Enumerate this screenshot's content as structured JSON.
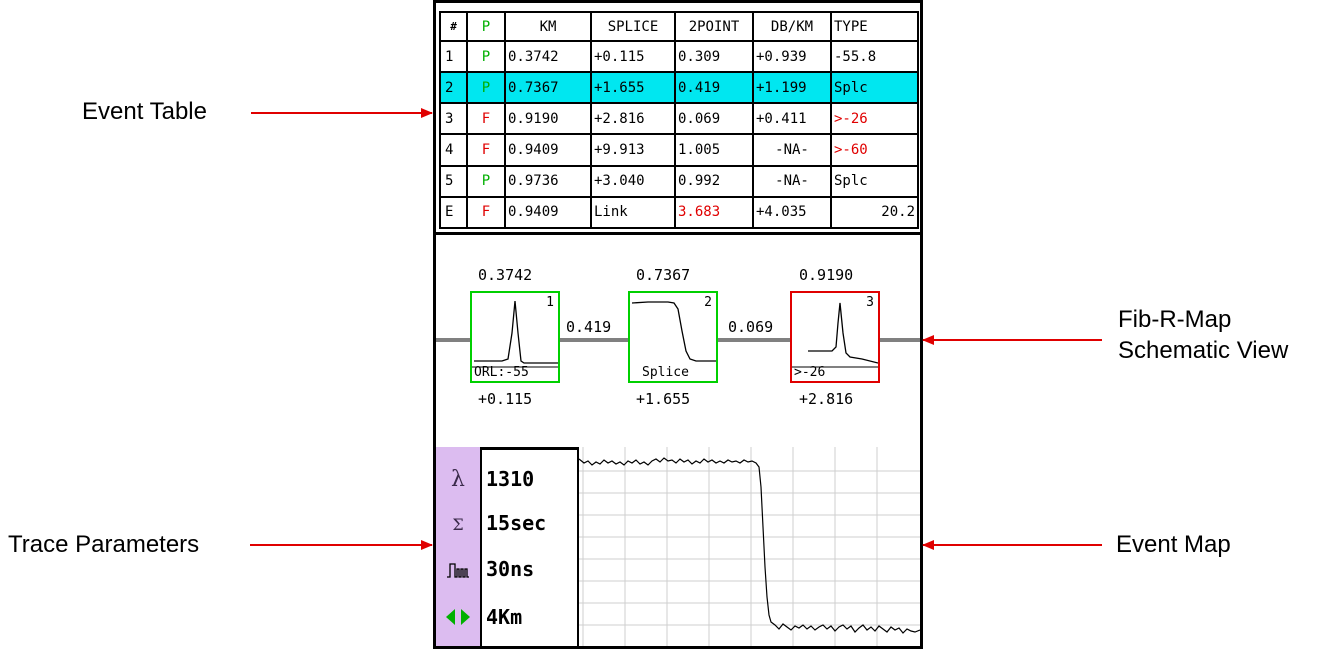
{
  "callouts": {
    "event_table": "Event Table",
    "fib_r_map_line1": "Fib-R-Map",
    "fib_r_map_line2": "Schematic View",
    "trace_parameters": "Trace Parameters",
    "event_map": "Event Map"
  },
  "colors": {
    "pass": "#00b000",
    "fail": "#e00000",
    "highlight_row": "#00e7f0",
    "param_panel": "#dcbcf0",
    "callout_arrow": "#e00000"
  },
  "event_table": {
    "headers": [
      "#",
      "P",
      "KM",
      "SPLICE",
      "2POINT",
      "DB/KM",
      "TYPE"
    ],
    "rows": [
      {
        "idx": "1",
        "pf": "P",
        "km": "0.3742",
        "splice": "+0.115",
        "two_point": "0.309",
        "db_km": "+0.939",
        "type": "-55.8"
      },
      {
        "idx": "2",
        "pf": "P",
        "km": "0.7367",
        "splice": "+1.655",
        "two_point": "0.419",
        "db_km": "+1.199",
        "type": "Splc"
      },
      {
        "idx": "3",
        "pf": "F",
        "km": "0.9190",
        "splice": "+2.816",
        "two_point": "0.069",
        "db_km": "+0.411",
        "type": ">-26"
      },
      {
        "idx": "4",
        "pf": "F",
        "km": "0.9409",
        "splice": "+9.913",
        "two_point": "1.005",
        "db_km": "-NA-",
        "type": ">-60"
      },
      {
        "idx": "5",
        "pf": "P",
        "km": "0.9736",
        "splice": "+3.040",
        "two_point": "0.992",
        "db_km": "-NA-",
        "type": "Splc"
      },
      {
        "idx": "E",
        "pf": "F",
        "km": "0.9409",
        "splice": "Link",
        "two_point": "3.683",
        "db_km": "+4.035",
        "type": "20.2"
      }
    ],
    "selected_row": 2
  },
  "schematic": {
    "events": [
      {
        "num": "1",
        "km": "0.3742",
        "label": "ORL:-55",
        "loss": "+0.115",
        "status": "pass",
        "icon": "reflective-peak"
      },
      {
        "num": "2",
        "km": "0.7367",
        "label": "Splice",
        "loss": "+1.655",
        "status": "pass",
        "icon": "splice-step"
      },
      {
        "num": "3",
        "km": "0.9190",
        "label": ">-26",
        "loss": "+2.816",
        "status": "fail",
        "icon": "reflective-peak"
      }
    ],
    "spans": [
      "0.419",
      "0.069"
    ]
  },
  "trace_params": [
    {
      "icon": "lambda-icon",
      "glyph": "λ",
      "value": "1310"
    },
    {
      "icon": "sigma-icon",
      "glyph": "Σ",
      "value": "15sec"
    },
    {
      "icon": "pulse-icon",
      "glyph": "pulse",
      "value": "30ns"
    },
    {
      "icon": "range-arrows-icon",
      "glyph": "◀▶",
      "value": "4Km"
    }
  ]
}
